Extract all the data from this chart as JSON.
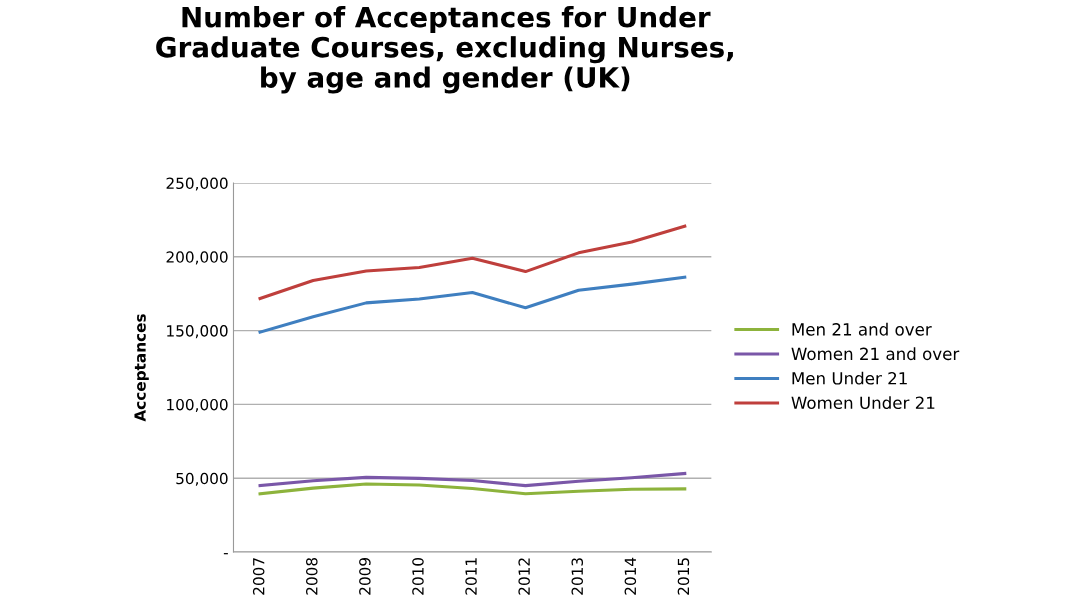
{
  "chart_data": {
    "type": "line",
    "title": "Number of Acceptances for Under\nGraduate Courses, excluding Nurses,\nby age and gender (UK)",
    "ylabel": "Acceptances",
    "categories": [
      "2007",
      "2008",
      "2009",
      "2010",
      "2011",
      "2012",
      "2013",
      "2014",
      "2015"
    ],
    "series": [
      {
        "name": "Men 21 and over",
        "color": "#8db33c",
        "values": [
          39500,
          43300,
          46100,
          45400,
          43100,
          39500,
          41200,
          42600,
          42800
        ]
      },
      {
        "name": "Women 21 and over",
        "color": "#7a57a8",
        "values": [
          45000,
          48300,
          50600,
          49900,
          48500,
          45000,
          48000,
          50400,
          53200
        ]
      },
      {
        "name": "Men Under 21",
        "color": "#3f7fc0",
        "values": [
          149000,
          159400,
          168800,
          171400,
          175800,
          165500,
          177300,
          181500,
          186200
        ]
      },
      {
        "name": "Women Under 21",
        "color": "#bf3f3c",
        "values": [
          171800,
          184000,
          190400,
          192800,
          199000,
          190000,
          202700,
          210000,
          220800
        ]
      }
    ],
    "ylim": [
      0,
      250000
    ],
    "yticks": [
      {
        "value": 0,
        "label": "-"
      },
      {
        "value": 50000,
        "label": "50,000"
      },
      {
        "value": 100000,
        "label": "100,000"
      },
      {
        "value": 150000,
        "label": "150,000"
      },
      {
        "value": 200000,
        "label": "200,000"
      },
      {
        "value": 250000,
        "label": "250,000"
      }
    ],
    "grid": "y",
    "legend": "right",
    "marker": "none",
    "line_style": "solid"
  }
}
